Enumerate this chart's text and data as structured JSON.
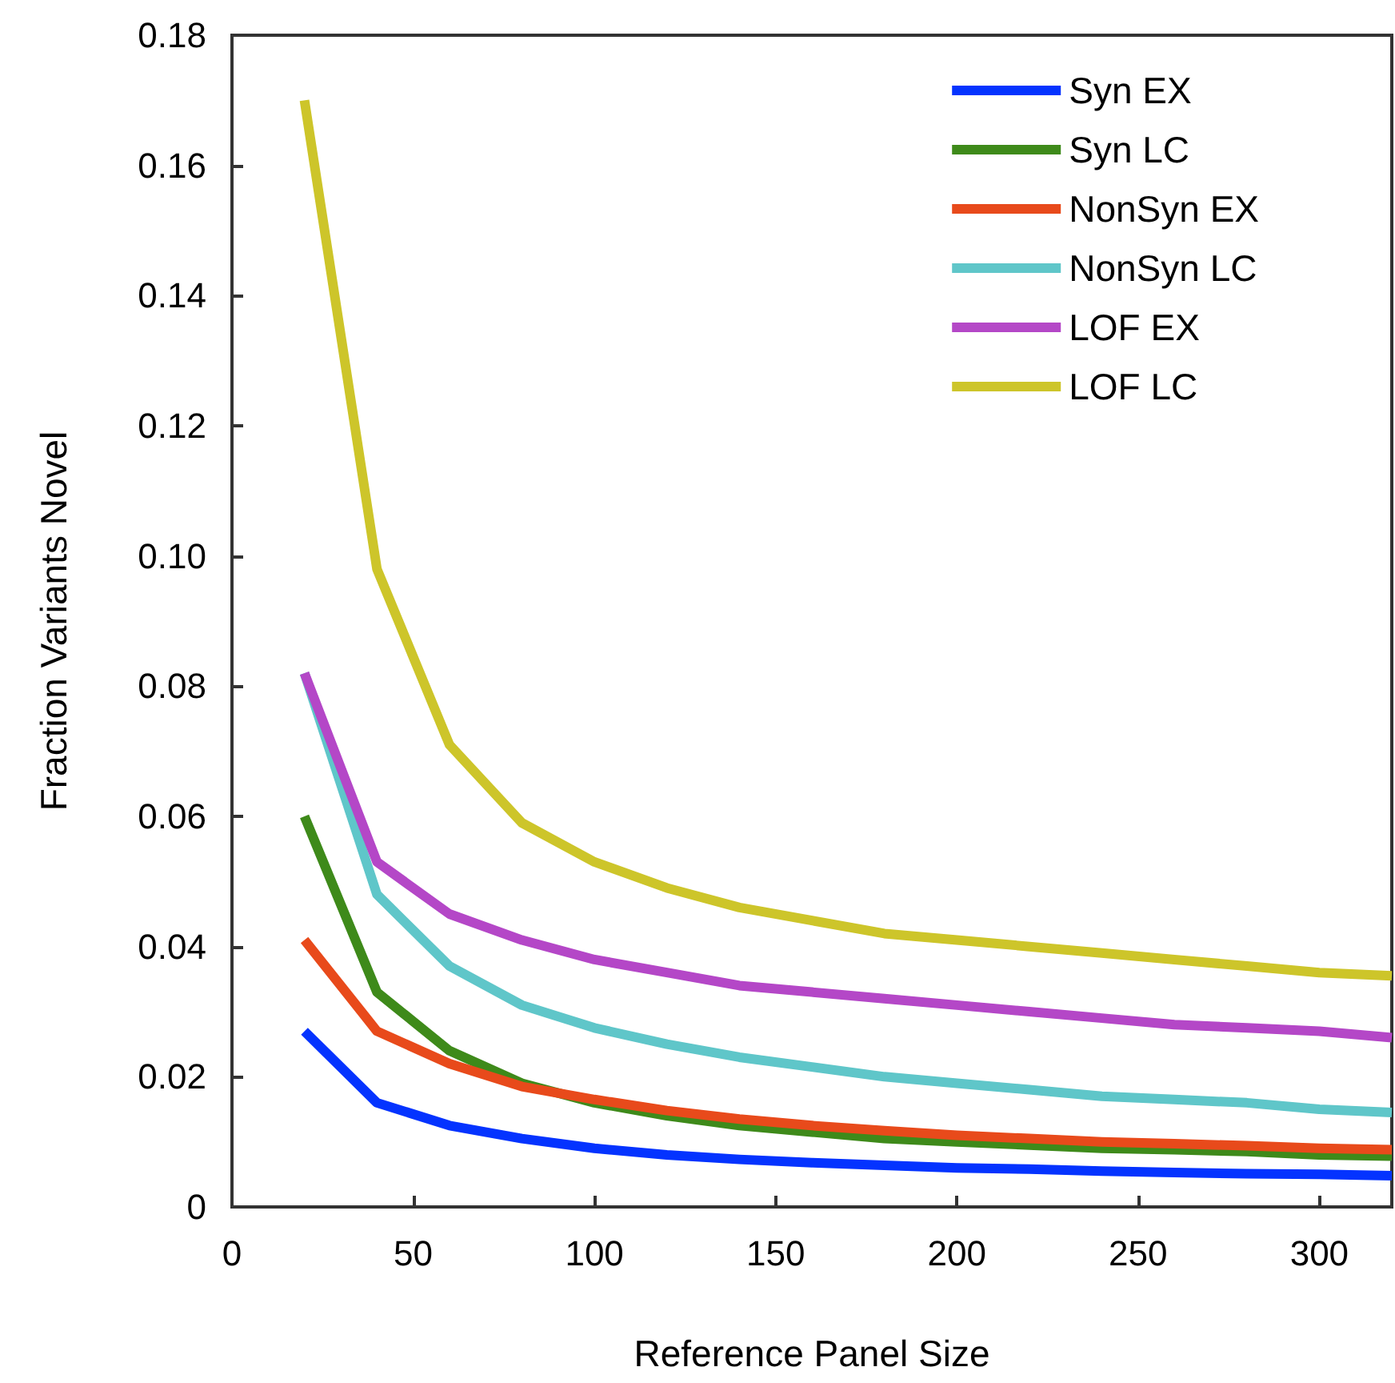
{
  "chart_data": {
    "type": "line",
    "xlabel": "Reference Panel Size",
    "ylabel": "Fraction Variants Novel",
    "x": [
      20,
      40,
      60,
      80,
      100,
      120,
      140,
      160,
      180,
      200,
      220,
      240,
      260,
      280,
      300,
      320
    ],
    "series": [
      {
        "name": "Syn EX",
        "color": "#0433ff",
        "values": [
          0.027,
          0.016,
          0.0125,
          0.0105,
          0.009,
          0.008,
          0.0073,
          0.0068,
          0.0064,
          0.006,
          0.0058,
          0.0055,
          0.0053,
          0.0051,
          0.005,
          0.0048
        ]
      },
      {
        "name": "Syn LC",
        "color": "#3e8a1a",
        "values": [
          0.06,
          0.033,
          0.024,
          0.019,
          0.016,
          0.014,
          0.0125,
          0.0115,
          0.0105,
          0.01,
          0.0095,
          0.009,
          0.0088,
          0.0085,
          0.008,
          0.0078
        ]
      },
      {
        "name": "NonSyn EX",
        "color": "#e84a1b",
        "values": [
          0.041,
          0.027,
          0.022,
          0.0185,
          0.0165,
          0.0148,
          0.0135,
          0.0125,
          0.0117,
          0.011,
          0.0105,
          0.01,
          0.0097,
          0.0094,
          0.009,
          0.0088
        ]
      },
      {
        "name": "NonSyn LC",
        "color": "#5fc6c9",
        "values": [
          0.082,
          0.048,
          0.037,
          0.031,
          0.0275,
          0.025,
          0.023,
          0.0215,
          0.02,
          0.019,
          0.018,
          0.017,
          0.0165,
          0.016,
          0.015,
          0.0145
        ]
      },
      {
        "name": "LOF EX",
        "color": "#b447c7",
        "values": [
          0.082,
          0.053,
          0.045,
          0.041,
          0.038,
          0.036,
          0.034,
          0.033,
          0.032,
          0.031,
          0.03,
          0.029,
          0.028,
          0.0275,
          0.027,
          0.026
        ]
      },
      {
        "name": "LOF LC",
        "color": "#cdc52a",
        "values": [
          0.17,
          0.098,
          0.071,
          0.059,
          0.053,
          0.049,
          0.046,
          0.044,
          0.042,
          0.041,
          0.04,
          0.039,
          0.038,
          0.037,
          0.036,
          0.0355
        ]
      }
    ],
    "xlim": [
      0,
      320
    ],
    "xticks": [
      0,
      50,
      100,
      150,
      200,
      250,
      300
    ],
    "ylim": [
      0,
      0.18
    ],
    "yticks": [
      0,
      0.02,
      0.04,
      0.06,
      0.08,
      {
        "value": 0.1,
        "label": "0.10"
      },
      0.12,
      0.14,
      0.16,
      0.18
    ],
    "grid": false,
    "legend": "top right",
    "marker": "none",
    "line_style": "solid"
  }
}
